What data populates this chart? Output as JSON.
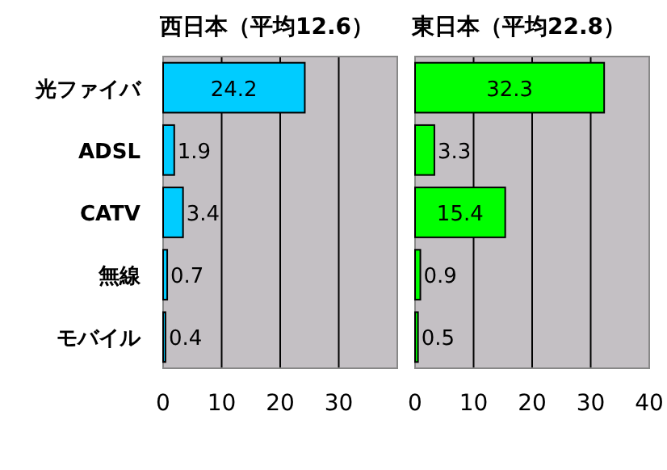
{
  "chart_data": [
    {
      "type": "bar",
      "orientation": "horizontal",
      "title": "西日本（平均12.6）",
      "categories": [
        "光ファイバ",
        "ADSL",
        "CATV",
        "無線",
        "モバイル"
      ],
      "values": [
        24.2,
        1.9,
        3.4,
        0.7,
        0.4
      ],
      "color": "#00ccff",
      "xlim": [
        0,
        40
      ],
      "xticks": [
        0,
        10,
        20,
        30
      ],
      "grid": "x",
      "data_labels": true
    },
    {
      "type": "bar",
      "orientation": "horizontal",
      "title": "東日本（平均22.8）",
      "categories": [
        null,
        null,
        null,
        null,
        null
      ],
      "values": [
        32.3,
        3.3,
        15.4,
        0.9,
        0.5
      ],
      "color": "#00ff00",
      "xlim": [
        0,
        40
      ],
      "xticks": [
        0,
        10,
        20,
        30,
        40
      ],
      "grid": "x",
      "data_labels": true,
      "tick_labels": "x"
    }
  ]
}
